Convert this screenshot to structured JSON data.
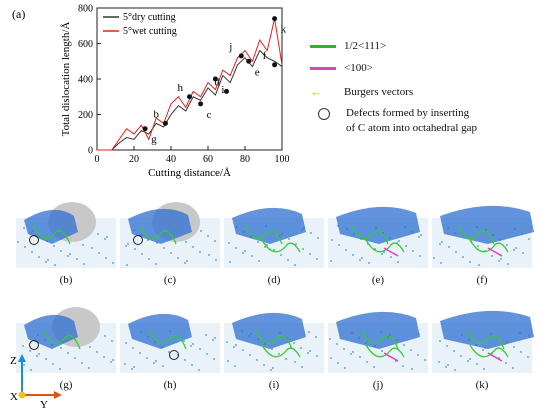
{
  "figure": {
    "panel_a_label": "(a)",
    "panel_labels": [
      "(b)",
      "(c)",
      "(d)",
      "(e)",
      "(f)",
      "(g)",
      "(h)",
      "(i)",
      "(j)",
      "(k)"
    ],
    "axes": {
      "z": "Z",
      "x": "X",
      "y": "Y"
    }
  },
  "chart_data": {
    "type": "line",
    "xlabel": "Cutting distance/Å",
    "ylabel": "Total dislocation length/Å",
    "xlim": [
      0,
      100
    ],
    "ylim": [
      0,
      800
    ],
    "xticks": [
      0,
      20,
      40,
      60,
      80,
      100
    ],
    "yticks": [
      0,
      200,
      400,
      600,
      800
    ],
    "xtick_labels": [
      "0",
      "20",
      "40",
      "60",
      "80",
      "100"
    ],
    "ytick_labels": [
      "0",
      "200",
      "400",
      "600",
      "800"
    ],
    "legend_position": "top-left",
    "series": [
      {
        "name": "5°dry cutting",
        "color": "#333333",
        "x": [
          0,
          8,
          12,
          16,
          20,
          24,
          28,
          32,
          36,
          40,
          44,
          48,
          52,
          56,
          60,
          64,
          68,
          72,
          76,
          80,
          84,
          88,
          92,
          96,
          100
        ],
        "y": [
          0,
          0,
          40,
          70,
          60,
          110,
          90,
          150,
          130,
          200,
          250,
          220,
          300,
          280,
          350,
          310,
          420,
          380,
          480,
          520,
          470,
          560,
          520,
          500,
          470
        ]
      },
      {
        "name": "5°wet cutting",
        "color": "#e0201b",
        "x": [
          0,
          8,
          12,
          16,
          20,
          24,
          28,
          32,
          36,
          40,
          44,
          48,
          52,
          56,
          60,
          64,
          68,
          72,
          76,
          80,
          84,
          88,
          92,
          96,
          100
        ],
        "y": [
          0,
          0,
          60,
          120,
          90,
          140,
          60,
          180,
          150,
          260,
          300,
          240,
          330,
          300,
          380,
          340,
          450,
          420,
          520,
          560,
          500,
          620,
          560,
          740,
          480
        ]
      }
    ],
    "annotations": [
      {
        "label": "g",
        "x": 26,
        "y": 120
      },
      {
        "label": "b",
        "x": 37,
        "y": 150
      },
      {
        "label": "h",
        "x": 50,
        "y": 300
      },
      {
        "label": "c",
        "x": 56,
        "y": 260
      },
      {
        "label": "i",
        "x": 64,
        "y": 400
      },
      {
        "label": "d",
        "x": 70,
        "y": 330
      },
      {
        "label": "j",
        "x": 78,
        "y": 530
      },
      {
        "label": "e",
        "x": 82,
        "y": 500
      },
      {
        "label": "k",
        "x": 96,
        "y": 740
      },
      {
        "label": "f",
        "x": 96,
        "y": 480
      }
    ]
  },
  "legend": {
    "items": [
      {
        "label": "1/2<111>",
        "color": "#22bb22"
      },
      {
        "label": "<100>",
        "color": "#e040c0"
      },
      {
        "label": "Burgers vectors",
        "color": "#cccc00"
      },
      {
        "label": "Defects formed by  inserting\nof C atom into octahedral gap",
        "color": ""
      }
    ]
  }
}
